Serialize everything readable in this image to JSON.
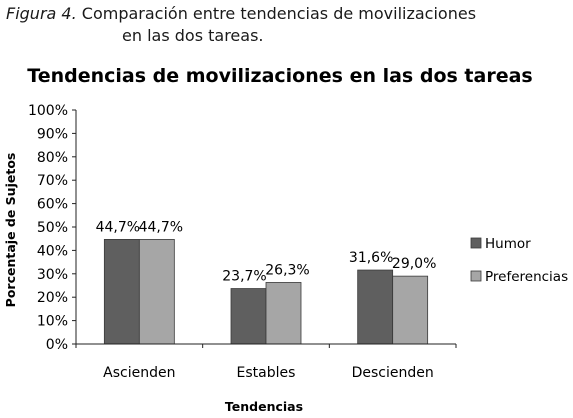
{
  "caption": {
    "prefix": "Figura 4.",
    "line1": "Comparación entre tendencias de movilizaciones",
    "line2": "en las dos tareas."
  },
  "chart_data": {
    "type": "bar",
    "title": "Tendencias de movilizaciones en las dos tareas",
    "xlabel": "Tendencias",
    "ylabel": "Porcentaje de Sujetos",
    "categories": [
      "Ascienden",
      "Estables",
      "Descienden"
    ],
    "series": [
      {
        "name": "Humor",
        "values": [
          44.7,
          23.7,
          31.6
        ],
        "labels": [
          "44,7%",
          "23,7%",
          "31,6%"
        ],
        "color": "#5f5f5f"
      },
      {
        "name": "Preferencias",
        "values": [
          44.7,
          26.3,
          29.0
        ],
        "labels": [
          "44,7%",
          "26,3%",
          "29,0%"
        ],
        "color": "#a6a6a6"
      }
    ],
    "ylim": [
      0,
      100
    ],
    "yticks": [
      "0%",
      "10%",
      "20%",
      "30%",
      "40%",
      "50%",
      "60%",
      "70%",
      "80%",
      "90%",
      "100%"
    ],
    "grid": false,
    "legend_position": "right"
  }
}
